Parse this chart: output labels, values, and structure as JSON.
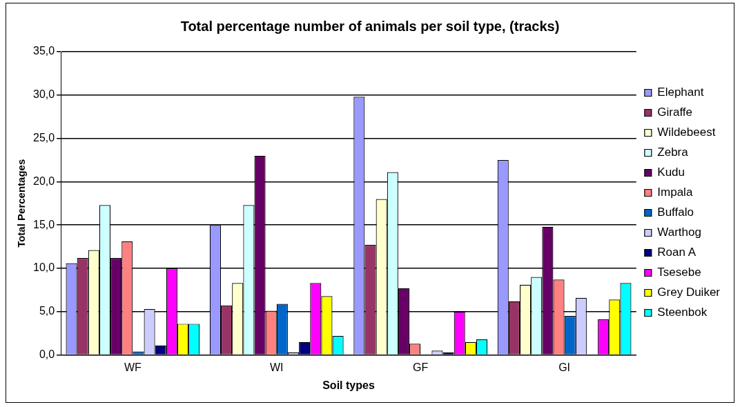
{
  "chart_data": {
    "type": "bar",
    "title": "Total percentage number of animals per soil type, (tracks)",
    "xlabel": "Soil types",
    "ylabel": "Total Percentages",
    "categories": [
      "WF",
      "WI",
      "GF",
      "GI"
    ],
    "series": [
      {
        "name": "Elephant",
        "color": "#9999ff",
        "values": [
          10.6,
          15.0,
          29.8,
          22.5
        ]
      },
      {
        "name": "Giraffe",
        "color": "#993366",
        "values": [
          11.2,
          5.7,
          12.7,
          6.2
        ]
      },
      {
        "name": "Wildebeest",
        "color": "#ffffcc",
        "values": [
          12.1,
          8.3,
          18.0,
          8.1
        ]
      },
      {
        "name": "Zebra",
        "color": "#ccffff",
        "values": [
          17.3,
          17.3,
          21.1,
          9.0
        ]
      },
      {
        "name": "Kudu",
        "color": "#660066",
        "values": [
          11.2,
          23.0,
          7.7,
          14.8
        ]
      },
      {
        "name": "Impala",
        "color": "#ff8080",
        "values": [
          13.1,
          5.1,
          1.3,
          8.7
        ]
      },
      {
        "name": "Buffalo",
        "color": "#0066cc",
        "values": [
          0.4,
          5.9,
          0,
          4.5
        ]
      },
      {
        "name": "Warthog",
        "color": "#ccccff",
        "values": [
          5.3,
          0.3,
          0.5,
          6.6
        ]
      },
      {
        "name": "Roan A",
        "color": "#000080",
        "values": [
          1.1,
          1.5,
          0.3,
          0
        ]
      },
      {
        "name": "Tsesebe",
        "color": "#ff00ff",
        "values": [
          10.0,
          8.3,
          5.0,
          4.1
        ]
      },
      {
        "name": "Grey Duiker",
        "color": "#ffff00",
        "values": [
          3.6,
          6.8,
          1.5,
          6.4
        ]
      },
      {
        "name": "Steenbok",
        "color": "#00ffff",
        "values": [
          3.6,
          2.2,
          1.8,
          8.3
        ]
      }
    ],
    "ylim": [
      0,
      35
    ],
    "yticks": [
      {
        "value": 0,
        "label": "0,0"
      },
      {
        "value": 5,
        "label": "5,0"
      },
      {
        "value": 10,
        "label": "10,0"
      },
      {
        "value": 15,
        "label": "15,0"
      },
      {
        "value": 20,
        "label": "20,0"
      },
      {
        "value": 25,
        "label": "25,0"
      },
      {
        "value": 30,
        "label": "30,0"
      },
      {
        "value": 35,
        "label": "35,0"
      }
    ],
    "grid": "y",
    "legend": "right"
  }
}
